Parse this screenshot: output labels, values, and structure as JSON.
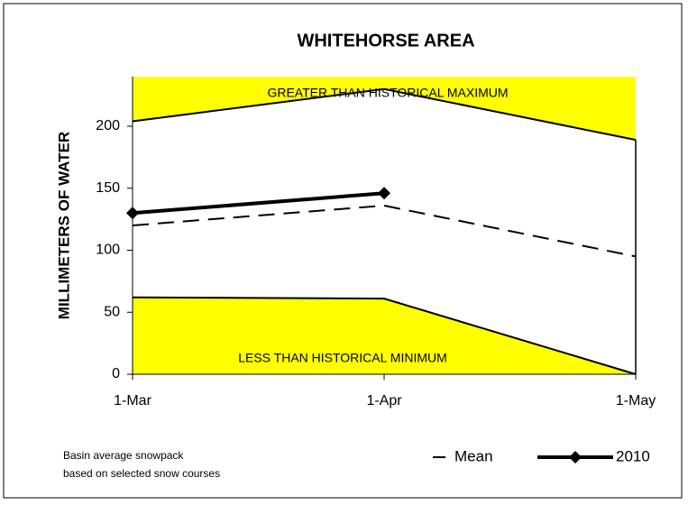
{
  "chart_data": {
    "type": "line",
    "title": "WHITEHORSE AREA",
    "y_label": "MILLIMETERS OF WATER",
    "categories": [
      "1-Mar",
      "1-Apr",
      "1-May"
    ],
    "bands": [
      {
        "label": "GREATER THAN HISTORICAL MAXIMUM",
        "values": [
          204,
          230,
          189
        ],
        "side": "above",
        "color": "#ffff00"
      },
      {
        "label": "LESS THAN HISTORICAL MINIMUM",
        "values": [
          62,
          61,
          0
        ],
        "side": "below",
        "color": "#ffff00"
      }
    ],
    "series": [
      {
        "name": "Mean",
        "color": "#000000",
        "dashed": true,
        "marker": false,
        "values": [
          120,
          136,
          95
        ]
      },
      {
        "name": "2010",
        "color": "#000000",
        "dashed": false,
        "marker": true,
        "values": [
          130,
          146,
          null
        ]
      }
    ],
    "note": [
      "Basin average snowpack",
      "based on selected snow courses"
    ],
    "ylim": [
      0,
      240
    ],
    "yticks": [
      0,
      50,
      100,
      150,
      200
    ],
    "grid": false
  }
}
